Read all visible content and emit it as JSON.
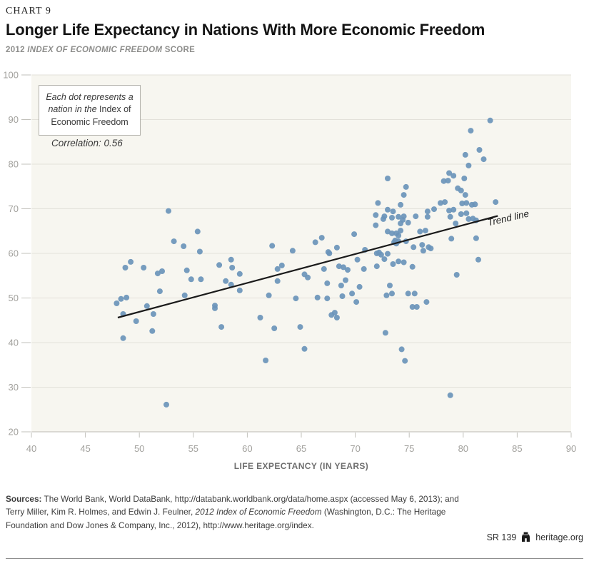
{
  "page": {
    "chart_label": "CHART 9",
    "title": "Longer Life Expectancy in Nations With More Economic Freedom",
    "subtitle_prefix": "2012 ",
    "subtitle_italic": "INDEX OF ECONOMIC FREEDOM",
    "subtitle_suffix": " SCORE"
  },
  "annotation": {
    "box_italic": "Each dot represents a nation in the ",
    "box_regular": "Index of Economic Freedom",
    "correlation": "Correlation: 0.56"
  },
  "chart_data": {
    "type": "scatter",
    "title": "Longer Life Expectancy in Nations With More Economic Freedom",
    "xlabel": "LIFE EXPECTANCY (IN YEARS)",
    "ylabel": "2012 Index of Economic Freedom Score",
    "xlim": [
      40,
      90
    ],
    "ylim": [
      20,
      100
    ],
    "xticks": [
      40,
      45,
      50,
      55,
      60,
      65,
      70,
      75,
      80,
      85,
      90
    ],
    "yticks": [
      20,
      30,
      40,
      50,
      60,
      70,
      80,
      90,
      100
    ],
    "grid": "horizontal",
    "legend_position": "none",
    "correlation": 0.56,
    "plot_bg": "#f7f6f0",
    "grid_color": "#e3e1da",
    "axis_color": "#bcbbb5",
    "tick_color": "#c2c1bb",
    "tick_label_color": "#a2a19d",
    "axis_title_color": "#6e6e6e",
    "point_color": "#6a94ba",
    "trend_color": "#1a1a1a",
    "trend_line": {
      "label": "Trend line",
      "x1": 48.0,
      "y1": 45.6,
      "x2": 83.2,
      "y2": 68.4
    },
    "points": [
      [
        47.9,
        48.8
      ],
      [
        48.3,
        49.8
      ],
      [
        48.5,
        41.0
      ],
      [
        48.5,
        46.4
      ],
      [
        48.7,
        56.8
      ],
      [
        48.8,
        50.1
      ],
      [
        49.2,
        58.1
      ],
      [
        49.7,
        44.8
      ],
      [
        50.4,
        56.8
      ],
      [
        50.7,
        48.2
      ],
      [
        51.2,
        42.6
      ],
      [
        51.3,
        46.4
      ],
      [
        51.7,
        55.5
      ],
      [
        51.9,
        51.5
      ],
      [
        52.1,
        56.0
      ],
      [
        52.5,
        26.1
      ],
      [
        52.7,
        69.5
      ],
      [
        53.2,
        62.7
      ],
      [
        54.1,
        61.6
      ],
      [
        54.2,
        50.6
      ],
      [
        54.4,
        56.2
      ],
      [
        54.8,
        54.2
      ],
      [
        55.4,
        64.9
      ],
      [
        55.6,
        60.4
      ],
      [
        55.7,
        54.2
      ],
      [
        57.0,
        48.3
      ],
      [
        57.0,
        47.7
      ],
      [
        57.4,
        57.4
      ],
      [
        57.6,
        43.5
      ],
      [
        58.0,
        53.8
      ],
      [
        58.5,
        58.6
      ],
      [
        58.5,
        53.0
      ],
      [
        58.6,
        56.8
      ],
      [
        59.3,
        55.4
      ],
      [
        59.3,
        51.7
      ],
      [
        61.2,
        45.6
      ],
      [
        61.7,
        36.0
      ],
      [
        62.0,
        50.6
      ],
      [
        62.3,
        61.7
      ],
      [
        62.5,
        43.2
      ],
      [
        62.8,
        56.5
      ],
      [
        62.8,
        53.8
      ],
      [
        63.2,
        57.3
      ],
      [
        64.2,
        60.6
      ],
      [
        64.5,
        49.9
      ],
      [
        64.9,
        43.5
      ],
      [
        65.3,
        55.3
      ],
      [
        65.3,
        38.6
      ],
      [
        65.6,
        54.6
      ],
      [
        66.3,
        62.5
      ],
      [
        66.5,
        50.1
      ],
      [
        66.9,
        63.5
      ],
      [
        67.1,
        56.5
      ],
      [
        67.4,
        53.3
      ],
      [
        67.4,
        49.9
      ],
      [
        67.5,
        60.3
      ],
      [
        67.6,
        60.0
      ],
      [
        67.8,
        46.2
      ],
      [
        68.1,
        46.7
      ],
      [
        68.3,
        45.6
      ],
      [
        68.3,
        61.3
      ],
      [
        68.5,
        57.1
      ],
      [
        68.7,
        52.8
      ],
      [
        68.8,
        50.4
      ],
      [
        68.9,
        56.9
      ],
      [
        69.1,
        54.0
      ],
      [
        69.3,
        56.3
      ],
      [
        69.7,
        51.0
      ],
      [
        69.9,
        64.3
      ],
      [
        70.1,
        49.1
      ],
      [
        70.2,
        58.6
      ],
      [
        70.4,
        52.5
      ],
      [
        70.8,
        56.5
      ],
      [
        70.9,
        60.8
      ],
      [
        71.9,
        68.6
      ],
      [
        71.9,
        66.3
      ],
      [
        72.0,
        60.0
      ],
      [
        72.0,
        57.1
      ],
      [
        72.1,
        71.3
      ],
      [
        72.2,
        60.2
      ],
      [
        72.4,
        59.7
      ],
      [
        72.6,
        67.7
      ],
      [
        72.7,
        68.3
      ],
      [
        72.7,
        58.7
      ],
      [
        72.8,
        42.2
      ],
      [
        72.9,
        50.6
      ],
      [
        73.0,
        76.8
      ],
      [
        73.0,
        69.8
      ],
      [
        73.0,
        64.9
      ],
      [
        73.0,
        59.9
      ],
      [
        73.2,
        52.8
      ],
      [
        73.4,
        68.0
      ],
      [
        73.4,
        64.5
      ],
      [
        73.4,
        51.0
      ],
      [
        73.5,
        69.4
      ],
      [
        73.5,
        57.6
      ],
      [
        73.6,
        62.5
      ],
      [
        73.7,
        62.9
      ],
      [
        73.8,
        64.5
      ],
      [
        73.8,
        62.2
      ],
      [
        74.0,
        68.2
      ],
      [
        74.0,
        64.0
      ],
      [
        74.0,
        62.7
      ],
      [
        74.0,
        58.2
      ],
      [
        74.2,
        70.9
      ],
      [
        74.2,
        66.7
      ],
      [
        74.2,
        65.1
      ],
      [
        74.3,
        38.5
      ],
      [
        74.4,
        67.5
      ],
      [
        74.5,
        73.1
      ],
      [
        74.5,
        68.3
      ],
      [
        74.5,
        58.0
      ],
      [
        74.6,
        35.9
      ],
      [
        74.7,
        74.9
      ],
      [
        74.7,
        62.7
      ],
      [
        74.9,
        66.9
      ],
      [
        74.9,
        51.0
      ],
      [
        75.3,
        57.0
      ],
      [
        75.3,
        48.0
      ],
      [
        75.4,
        61.4
      ],
      [
        75.5,
        51.0
      ],
      [
        75.6,
        68.3
      ],
      [
        75.7,
        48.0
      ],
      [
        76.0,
        64.9
      ],
      [
        76.2,
        61.9
      ],
      [
        76.3,
        60.6
      ],
      [
        76.5,
        65.1
      ],
      [
        76.6,
        49.1
      ],
      [
        76.7,
        69.4
      ],
      [
        76.7,
        68.2
      ],
      [
        76.8,
        61.4
      ],
      [
        77.0,
        61.1
      ],
      [
        77.3,
        69.9
      ],
      [
        77.9,
        71.3
      ],
      [
        78.2,
        76.2
      ],
      [
        78.3,
        71.5
      ],
      [
        78.6,
        76.3
      ],
      [
        78.7,
        78.0
      ],
      [
        78.7,
        69.6
      ],
      [
        78.8,
        68.2
      ],
      [
        78.8,
        28.2
      ],
      [
        78.9,
        63.3
      ],
      [
        79.1,
        77.4
      ],
      [
        79.1,
        69.8
      ],
      [
        79.3,
        66.7
      ],
      [
        79.4,
        55.2
      ],
      [
        79.5,
        74.6
      ],
      [
        79.8,
        74.1
      ],
      [
        79.8,
        68.8
      ],
      [
        79.9,
        71.2
      ],
      [
        80.1,
        76.8
      ],
      [
        80.2,
        82.1
      ],
      [
        80.2,
        73.1
      ],
      [
        80.3,
        71.3
      ],
      [
        80.3,
        69.0
      ],
      [
        80.5,
        79.7
      ],
      [
        80.5,
        67.7
      ],
      [
        80.7,
        87.5
      ],
      [
        80.8,
        70.9
      ],
      [
        80.9,
        67.8
      ],
      [
        81.1,
        71.0
      ],
      [
        81.2,
        67.4
      ],
      [
        81.2,
        63.4
      ],
      [
        81.4,
        58.6
      ],
      [
        81.5,
        83.2
      ],
      [
        81.9,
        81.1
      ],
      [
        82.5,
        89.8
      ],
      [
        83.0,
        71.5
      ]
    ]
  },
  "sources": {
    "label": "Sources:",
    "text_before_italic": " The World Bank, World DataBank, http://databank.worldbank.org/data/home.aspx (accessed May 6, 2013); and Terry Miller, Kim R. Holmes, and Edwin J. Feulner, ",
    "italic": "2012 Index of Economic Freedom",
    "text_after_italic": " (Washington, D.C.: The Heritage Foundation and Dow Jones & Company, Inc., 2012), http://www.heritage.org/index."
  },
  "footer": {
    "report_id": "SR 139",
    "site": "heritage.org"
  }
}
